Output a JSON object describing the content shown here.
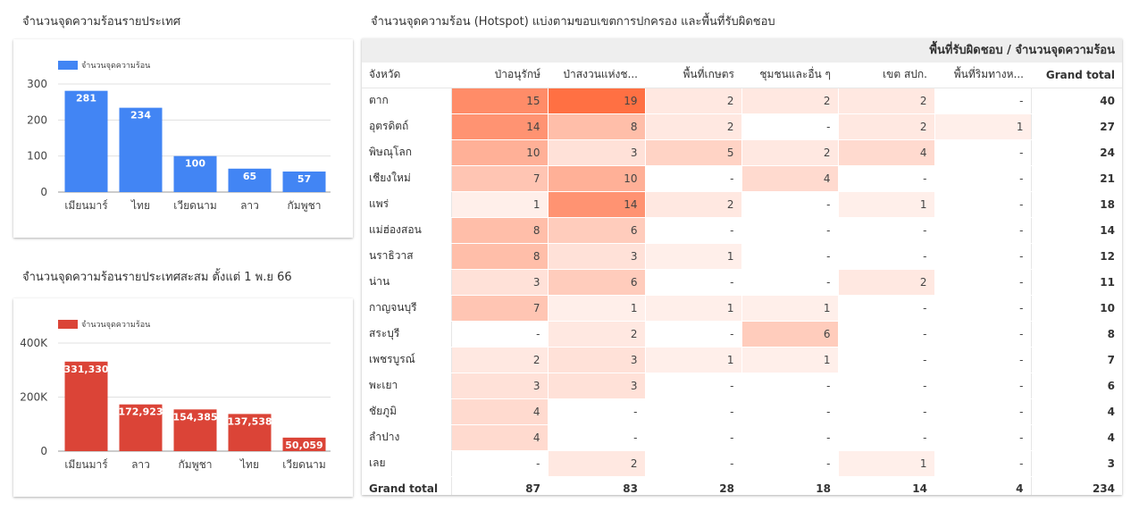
{
  "titles": {
    "country_chart": "จำนวนจุดความร้อนรายประเทศ",
    "cumulative_chart": "จำนวนจุดความร้อนรายประเทศสะสม ตั้งแต่ 1 พ.ย 66",
    "pivot": "จำนวนจุดความร้อน (Hotspot) แบ่งตามขอบเขตการปกครอง และพื้นที่รับผิดชอบ"
  },
  "colors": {
    "blue": "#4285f4",
    "red": "#db4437",
    "heat_max": "#ff7043"
  },
  "chart_data": [
    {
      "type": "bar",
      "title": "จำนวนจุดความร้อนรายประเทศ",
      "categories": [
        "เมียนมาร์",
        "ไทย",
        "เวียดนาม",
        "ลาว",
        "กัมพูชา"
      ],
      "series": [
        {
          "name": "จำนวนจุดความร้อน",
          "values": [
            281,
            234,
            100,
            65,
            57
          ]
        }
      ],
      "data_labels": [
        "281",
        "234",
        "100",
        "65",
        "57"
      ],
      "yticks": [
        0,
        100,
        200,
        300
      ],
      "ytick_labels": [
        "0",
        "100",
        "200",
        "300"
      ],
      "ylim": [
        0,
        300
      ],
      "legend": "top-left",
      "grid": true
    },
    {
      "type": "bar",
      "title": "จำนวนจุดความร้อนรายประเทศสะสม ตั้งแต่ 1 พ.ย 66",
      "categories": [
        "เมียนมาร์",
        "ลาว",
        "กัมพูชา",
        "ไทย",
        "เวียดนาม"
      ],
      "series": [
        {
          "name": "จำนวนจุดความร้อน",
          "values": [
            331330,
            172923,
            154385,
            137538,
            50059
          ]
        }
      ],
      "data_labels": [
        "331,330",
        "172,923",
        "154,385",
        "137,538",
        "50,059"
      ],
      "yticks": [
        0,
        200000,
        400000
      ],
      "ytick_labels": [
        "0",
        "200K",
        "400K"
      ],
      "ylim": [
        0,
        400000
      ],
      "legend": "top-left",
      "grid": true
    },
    {
      "type": "table",
      "title": "จำนวนจุดความร้อน (Hotspot) แบ่งตามขอบเขตการปกครอง และพื้นที่รับผิดชอบ",
      "group_header": "พื้นที่รับผิดชอบ / จำนวนจุดความร้อน",
      "row_header": "จังหวัด",
      "columns": [
        "ป่าอนุรักษ์",
        "ป่าสงวนแห่งช...",
        "พื้นที่เกษตร",
        "ชุมชนและอื่น ๆ",
        "เขต สปก.",
        "พื้นที่ริมทางห...",
        "Grand total"
      ],
      "rows": [
        {
          "province": "ตาก",
          "values": [
            15,
            19,
            2,
            2,
            2,
            null
          ],
          "total": 40
        },
        {
          "province": "อุตรดิตถ์",
          "values": [
            14,
            8,
            2,
            null,
            2,
            1
          ],
          "total": 27
        },
        {
          "province": "พิษณุโลก",
          "values": [
            10,
            3,
            5,
            2,
            4,
            null
          ],
          "total": 24
        },
        {
          "province": "เชียงใหม่",
          "values": [
            7,
            10,
            null,
            4,
            null,
            null
          ],
          "total": 21
        },
        {
          "province": "แพร่",
          "values": [
            1,
            14,
            2,
            null,
            1,
            null
          ],
          "total": 18
        },
        {
          "province": "แม่ฮ่องสอน",
          "values": [
            8,
            6,
            null,
            null,
            null,
            null
          ],
          "total": 14
        },
        {
          "province": "นราธิวาส",
          "values": [
            8,
            3,
            1,
            null,
            null,
            null
          ],
          "total": 12
        },
        {
          "province": "น่าน",
          "values": [
            3,
            6,
            null,
            null,
            2,
            null
          ],
          "total": 11
        },
        {
          "province": "กาญจนบุรี",
          "values": [
            7,
            1,
            1,
            1,
            null,
            null
          ],
          "total": 10
        },
        {
          "province": "สระบุรี",
          "values": [
            null,
            2,
            null,
            6,
            null,
            null
          ],
          "total": 8
        },
        {
          "province": "เพชรบูรณ์",
          "values": [
            2,
            3,
            1,
            1,
            null,
            null
          ],
          "total": 7
        },
        {
          "province": "พะเยา",
          "values": [
            3,
            3,
            null,
            null,
            null,
            null
          ],
          "total": 6
        },
        {
          "province": "ชัยภูมิ",
          "values": [
            4,
            null,
            null,
            null,
            null,
            null
          ],
          "total": 4
        },
        {
          "province": "ลำปาง",
          "values": [
            4,
            null,
            null,
            null,
            null,
            null
          ],
          "total": 4
        },
        {
          "province": "เลย",
          "values": [
            null,
            2,
            null,
            null,
            1,
            null
          ],
          "total": 3
        }
      ],
      "grand_total_label": "Grand total",
      "grand_total": {
        "values": [
          87,
          83,
          28,
          18,
          14,
          4
        ],
        "total": 234
      },
      "empty_symbol": "-"
    }
  ]
}
